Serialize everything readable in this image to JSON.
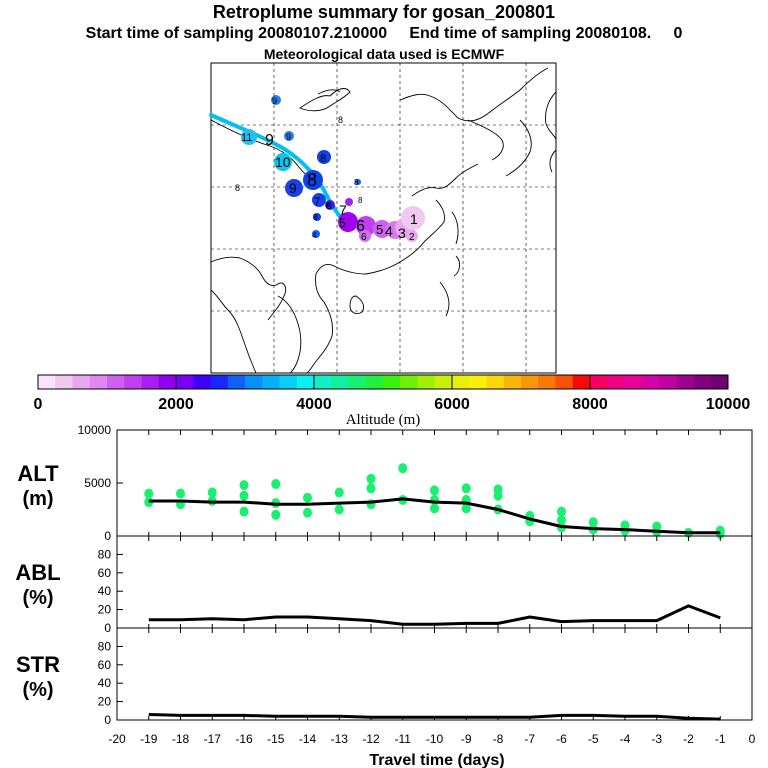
{
  "header": {
    "title": "Retroplume summary for gosan_200801",
    "sampling": "Start time of sampling 20080107.210000     End time of sampling 20080108.     0",
    "met": "Meteorological data used is ECMWF"
  },
  "colorbar": {
    "label": "Altitude (m)",
    "ticks": [
      "0",
      "2000",
      "4000",
      "6000",
      "8000",
      "10000"
    ],
    "colors": [
      "#f8e4f8",
      "#f0c8f0",
      "#e8a8f0",
      "#e088f0",
      "#d060f0",
      "#c040f0",
      "#a820f0",
      "#9000f0",
      "#7800f8",
      "#4000f8",
      "#1828f8",
      "#1060f8",
      "#0890f8",
      "#08b0f8",
      "#08d0f8",
      "#08f0f0",
      "#10f0c8",
      "#10f0a0",
      "#18f070",
      "#20f040",
      "#40f010",
      "#70f008",
      "#a0f008",
      "#c8f008",
      "#e8f008",
      "#f8f008",
      "#f8d808",
      "#f8b808",
      "#f89808",
      "#f87808",
      "#f85008",
      "#f80808",
      "#f80060",
      "#f00080",
      "#e80098",
      "#d800a8",
      "#c000a0",
      "#a00090",
      "#800080",
      "#700070"
    ]
  },
  "map": {
    "route_color": "#00c0f0",
    "labels": [
      {
        "t": "9",
        "c": "#2a7be8"
      },
      {
        "t": "8",
        "c": "#21c0e8"
      },
      {
        "t": "11",
        "c": "#21c0f0"
      },
      {
        "t": "9",
        "c": "#2a7be8"
      },
      {
        "t": "9",
        "c": "#1a40e8"
      },
      {
        "t": "10",
        "c": "#08c8f0"
      },
      {
        "t": "8",
        "c": "#1040e8"
      },
      {
        "t": "8",
        "c": "#18f090"
      },
      {
        "t": "9",
        "c": "#1040e8"
      },
      {
        "t": "8",
        "c": "#1840f0"
      },
      {
        "t": "7",
        "c": "#1a50e8"
      },
      {
        "t": "8",
        "c": "#1040f0"
      },
      {
        "t": "7",
        "c": "#a000f0"
      },
      {
        "t": "8",
        "c": "#3020f0"
      },
      {
        "t": "5",
        "c": "#a020f0"
      },
      {
        "t": "6",
        "c": "#c040f0"
      },
      {
        "t": "5",
        "c": "#d060f0"
      },
      {
        "t": "4",
        "c": "#d070f0"
      },
      {
        "t": "3",
        "c": "#e090f0"
      },
      {
        "t": "1",
        "c": "#f0c8f0"
      },
      {
        "t": "6",
        "c": "#d070f0"
      },
      {
        "t": "2",
        "c": "#e8a8f0"
      },
      {
        "t": "4",
        "c": "#1060f8"
      },
      {
        "t": "8",
        "c": "#1060f8"
      },
      {
        "t": "8",
        "c": "#1040f0"
      },
      {
        "t": "9",
        "c": "#1060f0"
      }
    ]
  },
  "chart_data": [
    {
      "type": "scatter+line",
      "name": "ALT",
      "ylabel": [
        "ALT",
        "(m)"
      ],
      "xlabel": "Travel time (days)",
      "xlim": [
        -20,
        0
      ],
      "ylim": [
        0,
        10000
      ],
      "yticks": [
        "0",
        "5000",
        "10000"
      ],
      "line_color": "#000000",
      "point_color": "#18f070",
      "line": {
        "x": [
          -19,
          -18,
          -17,
          -16,
          -15,
          -14,
          -13,
          -12,
          -11,
          -10,
          -9,
          -8,
          -7,
          -6,
          -5,
          -4,
          -3,
          -2,
          -1
        ],
        "y": [
          3300,
          3300,
          3200,
          3200,
          3000,
          3000,
          3100,
          3200,
          3500,
          3200,
          3100,
          2500,
          1600,
          900,
          700,
          600,
          450,
          300,
          300
        ]
      },
      "points": [
        [
          -19,
          3200
        ],
        [
          -19,
          4000
        ],
        [
          -18,
          3000
        ],
        [
          -18,
          4000
        ],
        [
          -17,
          3300
        ],
        [
          -17,
          4100
        ],
        [
          -16,
          2300
        ],
        [
          -16,
          3800
        ],
        [
          -16,
          4800
        ],
        [
          -15,
          2000
        ],
        [
          -15,
          3100
        ],
        [
          -15,
          4900
        ],
        [
          -14,
          2200
        ],
        [
          -14,
          3600
        ],
        [
          -13,
          2500
        ],
        [
          -13,
          4100
        ],
        [
          -12,
          3000
        ],
        [
          -12,
          4500
        ],
        [
          -12,
          5400
        ],
        [
          -11,
          3400
        ],
        [
          -11,
          6400
        ],
        [
          -10,
          2600
        ],
        [
          -10,
          3400
        ],
        [
          -10,
          4300
        ],
        [
          -9,
          3400
        ],
        [
          -9,
          2600
        ],
        [
          -9,
          4500
        ],
        [
          -8,
          2500
        ],
        [
          -8,
          3800
        ],
        [
          -8,
          4400
        ],
        [
          -7,
          1400
        ],
        [
          -7,
          1900
        ],
        [
          -6,
          800
        ],
        [
          -6,
          1500
        ],
        [
          -6,
          2300
        ],
        [
          -5,
          600
        ],
        [
          -5,
          1300
        ],
        [
          -4,
          500
        ],
        [
          -4,
          1000
        ],
        [
          -3,
          400
        ],
        [
          -3,
          900
        ],
        [
          -2,
          300
        ],
        [
          -1,
          200
        ],
        [
          -1,
          500
        ]
      ]
    },
    {
      "type": "line",
      "name": "ABL",
      "ylabel": [
        "ABL",
        "(%)"
      ],
      "xlim": [
        -20,
        0
      ],
      "ylim": [
        0,
        100
      ],
      "yticks": [
        "0",
        "20",
        "40",
        "60",
        "80"
      ],
      "line": {
        "x": [
          -19,
          -18,
          -17,
          -16,
          -15,
          -14,
          -13,
          -12,
          -11,
          -10,
          -9,
          -8,
          -7,
          -6,
          -5,
          -4,
          -3,
          -2,
          -1
        ],
        "y": [
          9,
          9,
          10,
          9,
          12,
          12,
          10,
          8,
          4,
          4,
          5,
          5,
          12,
          7,
          8,
          8,
          8,
          24,
          11
        ]
      }
    },
    {
      "type": "line",
      "name": "STR",
      "ylabel": [
        "STR",
        "(%)"
      ],
      "xlim": [
        -20,
        0
      ],
      "ylim": [
        0,
        100
      ],
      "yticks": [
        "0",
        "20",
        "40",
        "60",
        "80"
      ],
      "xticks": [
        "-20",
        "-19",
        "-18",
        "-17",
        "-16",
        "-15",
        "-14",
        "-13",
        "-12",
        "-11",
        "-10",
        "-9",
        "-8",
        "-7",
        "-6",
        "-5",
        "-4",
        "-3",
        "-2",
        "-1",
        "0"
      ],
      "line": {
        "x": [
          -19,
          -18,
          -17,
          -16,
          -15,
          -14,
          -13,
          -12,
          -11,
          -10,
          -9,
          -8,
          -7,
          -6,
          -5,
          -4,
          -3,
          -2,
          -1
        ],
        "y": [
          6,
          5,
          5,
          5,
          4,
          4,
          4,
          3,
          3,
          3,
          3,
          3,
          3,
          5,
          5,
          4,
          4,
          2,
          1
        ]
      }
    }
  ]
}
